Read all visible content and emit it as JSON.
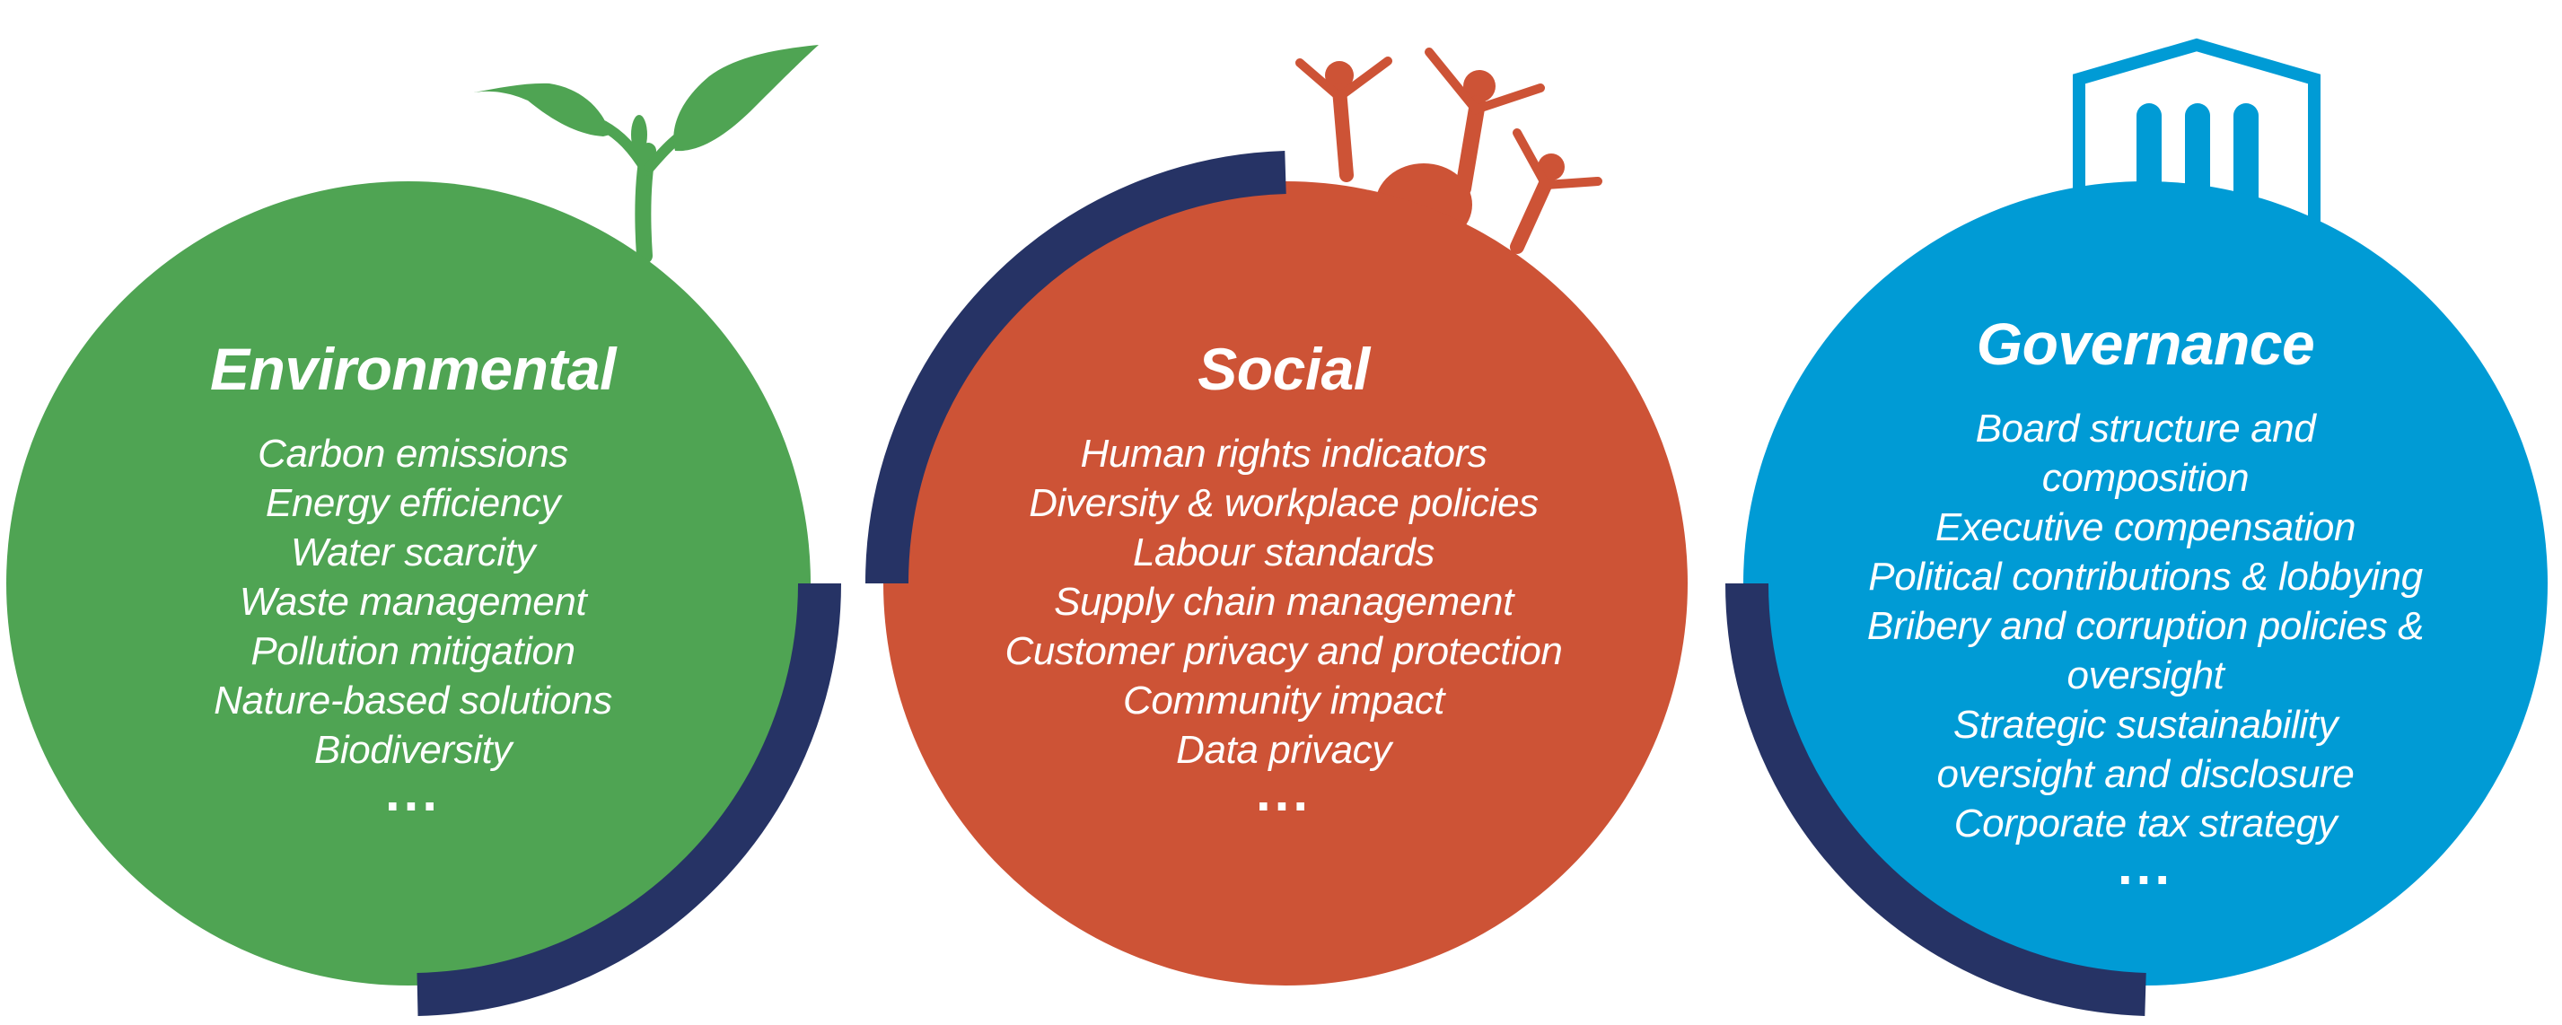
{
  "colors": {
    "environmental": "#4fa453",
    "social": "#cd5336",
    "governance": "#009bd5",
    "arc": "#263365",
    "text": "#ffffff"
  },
  "pillars": [
    {
      "id": "environmental",
      "title": "Environmental",
      "icon": "sprout-icon",
      "items": [
        "Carbon emissions",
        "Energy efficiency",
        "Water scarcity",
        "Waste management",
        "Pollution mitigation",
        "Nature-based solutions",
        "Biodiversity"
      ],
      "ellipsis": "..."
    },
    {
      "id": "social",
      "title": "Social",
      "icon": "people-icon",
      "items": [
        "Human rights indicators",
        "Diversity & workplace policies",
        "Labour standards",
        "Supply chain management",
        "Customer privacy and protection",
        "Community impact",
        "Data privacy"
      ],
      "ellipsis": "..."
    },
    {
      "id": "governance",
      "title": "Governance",
      "icon": "building-icon",
      "items": [
        "Board structure and",
        "composition",
        "Executive compensation",
        "Political contributions & lobbying",
        "Bribery and corruption policies &",
        "oversight",
        "Strategic sustainability",
        "oversight and disclosure",
        "Corporate tax strategy"
      ],
      "ellipsis": "..."
    }
  ]
}
